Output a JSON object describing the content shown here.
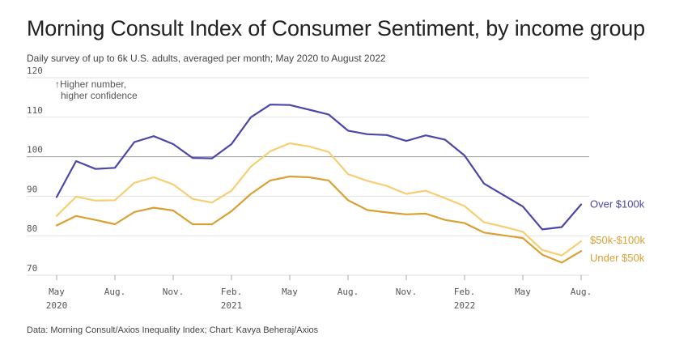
{
  "title": "Morning Consult Index of Consumer Sentiment, by income group",
  "subtitle": "Daily survey of up to 6k U.S. adults, averaged per month; May 2020 to August 2022",
  "source": "Data: Morning Consult/Axios Inequality Index; Chart: Kavya Beheraj/Axios",
  "annotation": [
    "↑Higher number,",
    "higher confidence"
  ],
  "chart_data": {
    "type": "line",
    "ylim": [
      70,
      120
    ],
    "y_ticks": [
      70,
      80,
      90,
      100,
      110,
      120
    ],
    "x": [
      "2020-05",
      "2020-06",
      "2020-07",
      "2020-08",
      "2020-09",
      "2020-10",
      "2020-11",
      "2020-12",
      "2021-01",
      "2021-02",
      "2021-03",
      "2021-04",
      "2021-05",
      "2021-06",
      "2021-07",
      "2021-08",
      "2021-09",
      "2021-10",
      "2021-11",
      "2021-12",
      "2022-01",
      "2022-02",
      "2022-03",
      "2022-04",
      "2022-05",
      "2022-06",
      "2022-07",
      "2022-08"
    ],
    "x_tick_labels": [
      {
        "x": "2020-05",
        "label": "May",
        "year": "2020"
      },
      {
        "x": "2020-08",
        "label": "Aug.",
        "year": ""
      },
      {
        "x": "2020-11",
        "label": "Nov.",
        "year": ""
      },
      {
        "x": "2021-02",
        "label": "Feb.",
        "year": "2021"
      },
      {
        "x": "2021-05",
        "label": "May",
        "year": ""
      },
      {
        "x": "2021-08",
        "label": "Aug.",
        "year": ""
      },
      {
        "x": "2021-11",
        "label": "Nov.",
        "year": ""
      },
      {
        "x": "2022-02",
        "label": "Feb.",
        "year": "2022"
      },
      {
        "x": "2022-05",
        "label": "May",
        "year": ""
      },
      {
        "x": "2022-08",
        "label": "Aug.",
        "year": ""
      }
    ],
    "grid": true,
    "highlight_gridline": 100,
    "series": [
      {
        "name": "Over $100k",
        "color": "#4b47a8",
        "values": [
          89.8,
          98.9,
          96.9,
          97.2,
          103.7,
          105.2,
          103.2,
          99.7,
          99.6,
          103.2,
          110.0,
          113.2,
          113.1,
          111.9,
          110.7,
          106.6,
          105.7,
          105.5,
          104.0,
          105.4,
          104.3,
          100.3,
          93.2,
          90.3,
          87.4,
          81.6,
          82.2,
          87.9
        ]
      },
      {
        "name": "$50k-$100k",
        "color": "#f5cf72",
        "values": [
          85.0,
          89.9,
          88.9,
          89.0,
          93.4,
          94.8,
          93.0,
          89.3,
          88.4,
          91.4,
          97.5,
          101.4,
          103.4,
          102.6,
          101.2,
          95.6,
          93.9,
          92.6,
          90.6,
          91.4,
          89.5,
          87.5,
          83.4,
          82.3,
          81.0,
          76.4,
          75.0,
          78.6
        ]
      },
      {
        "name": "Under $50k",
        "color": "#d9a033",
        "values": [
          82.6,
          85.0,
          84.0,
          82.9,
          86.0,
          87.1,
          86.4,
          82.9,
          82.9,
          86.2,
          90.6,
          94.0,
          95.0,
          94.8,
          94.0,
          89.0,
          86.5,
          85.9,
          85.4,
          85.6,
          84.0,
          83.2,
          80.8,
          80.1,
          79.4,
          75.2,
          73.2,
          76.1
        ]
      }
    ]
  }
}
